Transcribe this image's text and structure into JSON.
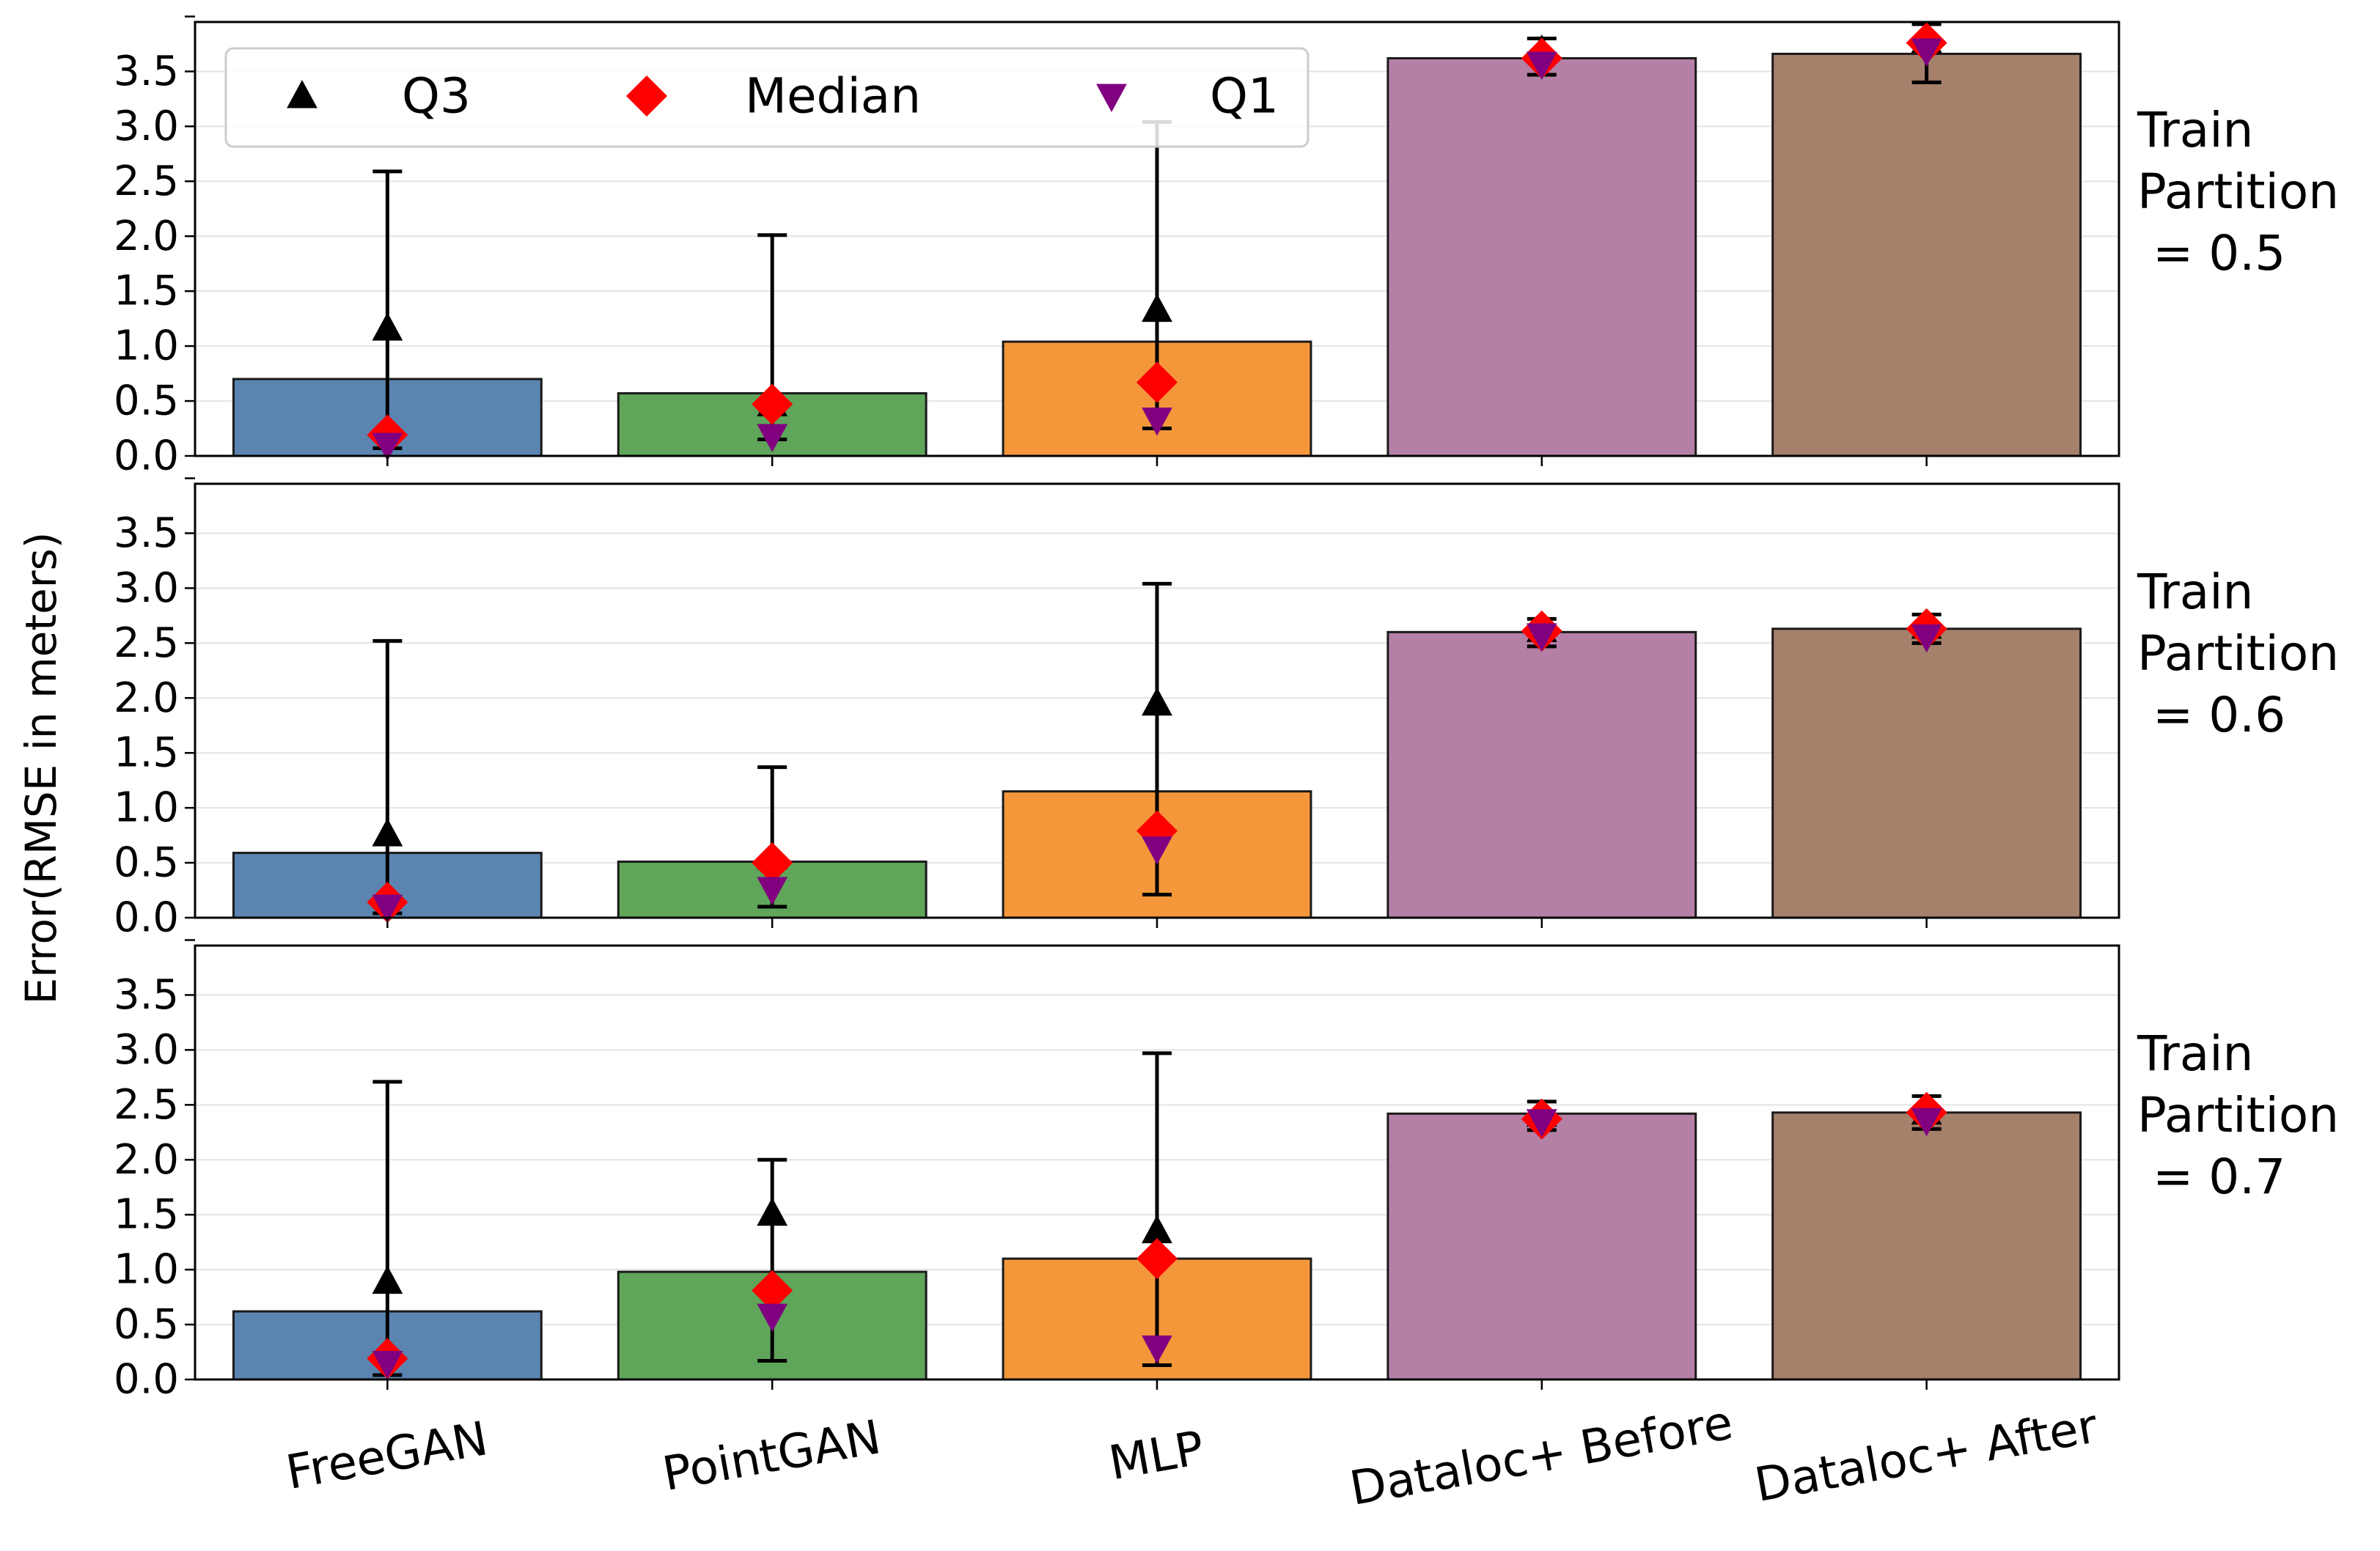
{
  "chart_data": {
    "type": "bar",
    "ylabel": "Error(RMSE in meters)",
    "categories": [
      "FreeGAN",
      "PointGAN",
      "MLP",
      "Dataloc+ Before",
      "Dataloc+ After"
    ],
    "bar_colors": [
      "#5b84b1",
      "#5fa55a",
      "#f4973b",
      "#b480a6",
      "#a5806b"
    ],
    "marker_colors": {
      "q3": "#000000",
      "median": "#ff0000",
      "q1": "#800080"
    },
    "legend": {
      "position": "upper-left",
      "items": [
        {
          "key": "q3",
          "label": "Q3"
        },
        {
          "key": "median",
          "label": "Median"
        },
        {
          "key": "q1",
          "label": "Q1"
        }
      ]
    },
    "ylim": [
      0,
      3.95
    ],
    "yticks": [
      "0.0",
      "0.5",
      "1.0",
      "1.5",
      "2.0",
      "2.5",
      "3.0",
      "3.5"
    ],
    "grid": "horizontal",
    "panels": [
      {
        "label": "Train\nPartition\n = 0.5",
        "values": [
          0.7,
          0.57,
          1.04,
          3.62,
          3.66
        ],
        "err_low": [
          0.07,
          0.15,
          0.25,
          3.47,
          3.4
        ],
        "err_high": [
          2.59,
          2.01,
          3.04,
          3.8,
          3.93
        ],
        "q3": [
          1.16,
          0.47,
          1.33,
          3.69,
          3.78
        ],
        "median": [
          0.19,
          0.47,
          0.67,
          3.62,
          3.76
        ],
        "q1": [
          0.1,
          0.18,
          0.33,
          3.57,
          3.69
        ]
      },
      {
        "label": "Train\nPartition\n = 0.6",
        "values": [
          0.59,
          0.51,
          1.15,
          2.6,
          2.63
        ],
        "err_low": [
          0.04,
          0.1,
          0.21,
          2.47,
          2.5
        ],
        "err_high": [
          2.52,
          1.37,
          3.04,
          2.72,
          2.76
        ],
        "q3": [
          0.76,
          0.55,
          1.95,
          2.62,
          2.65
        ],
        "median": [
          0.14,
          0.5,
          0.79,
          2.61,
          2.63
        ],
        "q1": [
          0.1,
          0.26,
          0.63,
          2.57,
          2.56
        ]
      },
      {
        "label": "Train\nPartition\n = 0.7",
        "values": [
          0.62,
          0.98,
          1.1,
          2.42,
          2.43
        ],
        "err_low": [
          0.04,
          0.17,
          0.13,
          2.27,
          2.28
        ],
        "err_high": [
          2.71,
          2.0,
          2.97,
          2.53,
          2.58
        ],
        "q3": [
          0.89,
          1.51,
          1.35,
          2.41,
          2.43
        ],
        "median": [
          0.19,
          0.81,
          1.1,
          2.37,
          2.43
        ],
        "q1": [
          0.15,
          0.58,
          0.29,
          2.35,
          2.36
        ]
      }
    ]
  }
}
